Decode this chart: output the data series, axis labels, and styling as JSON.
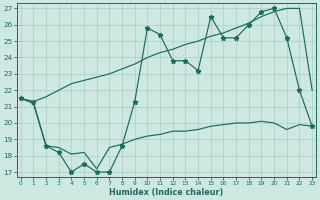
{
  "xlabel": "Humidex (Indice chaleur)",
  "xlim": [
    0,
    23
  ],
  "ylim": [
    17,
    27
  ],
  "yticks": [
    17,
    18,
    19,
    20,
    21,
    22,
    23,
    24,
    25,
    26,
    27
  ],
  "xticks": [
    0,
    1,
    2,
    3,
    4,
    5,
    6,
    7,
    8,
    9,
    10,
    11,
    12,
    13,
    14,
    15,
    16,
    17,
    18,
    19,
    20,
    21,
    22,
    23
  ],
  "bg_color": "#cce8e0",
  "line_color": "#1a6b60",
  "grid_color": "#aacfc8",
  "line1_y": [
    21.5,
    21.3,
    21.6,
    22.0,
    22.4,
    22.6,
    22.8,
    23.0,
    23.3,
    23.6,
    24.0,
    24.3,
    24.5,
    24.8,
    25.0,
    25.3,
    25.5,
    25.8,
    26.1,
    26.5,
    26.8,
    27.0,
    27.0,
    22.0
  ],
  "line2_y": [
    21.5,
    21.3,
    18.6,
    18.2,
    17.0,
    17.5,
    17.0,
    17.0,
    18.6,
    21.3,
    25.8,
    25.4,
    23.8,
    23.8,
    23.2,
    26.5,
    25.2,
    25.2,
    26.0,
    26.8,
    27.0,
    25.2,
    22.0,
    19.8
  ],
  "line3_y": [
    21.5,
    21.2,
    18.6,
    18.5,
    18.1,
    18.2,
    17.2,
    18.5,
    18.7,
    19.0,
    19.2,
    19.3,
    19.5,
    19.5,
    19.6,
    19.8,
    19.9,
    20.0,
    20.0,
    20.1,
    20.0,
    19.6,
    19.9,
    19.8
  ]
}
